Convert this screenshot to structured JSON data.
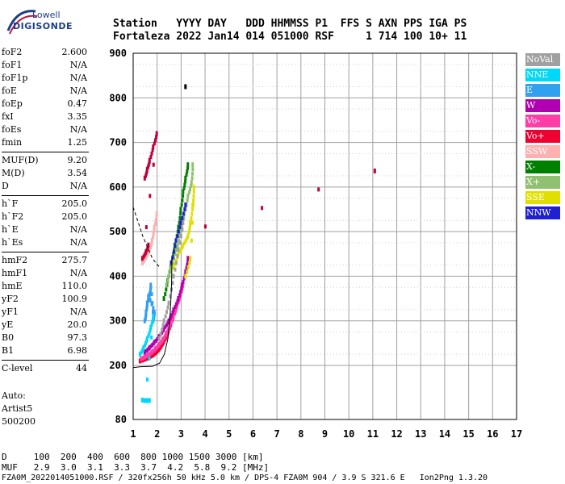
{
  "header": {
    "line1": "Station   YYYY DAY   DDD HHMMSS P1  FFS S AXN PPS IGA PS",
    "line2": "Fortaleza 2022 Jan14 014 051000 RSF     1 714 100 10+ 11"
  },
  "logo": {
    "line1": "Lowell",
    "line2": "DIGISONDE"
  },
  "params": [
    {
      "k": "foF2",
      "v": "2.600"
    },
    {
      "k": "foF1",
      "v": "N/A"
    },
    {
      "k": "foF1p",
      "v": "N/A"
    },
    {
      "k": "foE",
      "v": "N/A"
    },
    {
      "k": "foEp",
      "v": "0.47"
    },
    {
      "k": "fxI",
      "v": "3.35"
    },
    {
      "k": "foEs",
      "v": "N/A"
    },
    {
      "k": "fmin",
      "v": "1.25"
    },
    {
      "k": "MUF(D)",
      "v": "9.20"
    },
    {
      "k": "M(D)",
      "v": "3.54"
    },
    {
      "k": "D",
      "v": "N/A"
    },
    {
      "k": "h`F",
      "v": "205.0"
    },
    {
      "k": "h`F2",
      "v": "205.0"
    },
    {
      "k": "h`E",
      "v": "N/A"
    },
    {
      "k": "h`Es",
      "v": "N/A"
    },
    {
      "k": "hmF2",
      "v": "275.7"
    },
    {
      "k": "hmF1",
      "v": "N/A"
    },
    {
      "k": "hmE",
      "v": "110.0"
    },
    {
      "k": "yF2",
      "v": "100.9"
    },
    {
      "k": "yF1",
      "v": "N/A"
    },
    {
      "k": "yE",
      "v": "20.0"
    },
    {
      "k": "B0",
      "v": "97.3"
    },
    {
      "k": "B1",
      "v": "6.98"
    },
    {
      "k": "C-level",
      "v": "44"
    }
  ],
  "auto": {
    "l1": "Auto:",
    "l2": "Artist5",
    "l3": "500200"
  },
  "legend": [
    {
      "label": "NoVal",
      "bg": "#a0a0a0",
      "fg": "#ffffff"
    },
    {
      "label": "NNE",
      "bg": "#00d8f8",
      "fg": "#ffffff"
    },
    {
      "label": "E",
      "bg": "#30a0f0",
      "fg": "#ffffff"
    },
    {
      "label": "W",
      "bg": "#b000b0",
      "fg": "#ffffff"
    },
    {
      "label": "Vo-",
      "bg": "#ff3ca8",
      "fg": "#ffffff"
    },
    {
      "label": "Vo+",
      "bg": "#f00030",
      "fg": "#ffffff"
    },
    {
      "label": "SSW",
      "bg": "#ffb0b0",
      "fg": "#ffffff"
    },
    {
      "label": "X-",
      "bg": "#008000",
      "fg": "#ffffff"
    },
    {
      "label": "X+",
      "bg": "#90c070",
      "fg": "#ffffff"
    },
    {
      "label": "SSE",
      "bg": "#e0e000",
      "fg": "#ffffff"
    },
    {
      "label": "NNW",
      "bg": "#2020d0",
      "fg": "#ffffff"
    }
  ],
  "footer": {
    "row1": "D     100  200  400  600  800 1000 1500 3000 [km]",
    "row2": "MUF   2.9  3.0  3.1  3.3  3.7  4.2  5.8  9.2 [MHz]",
    "row3": "FZA0M_2022014051000.RSF / 320fx256h 50 kHz 5.0 km / DPS-4 FZA0M 904 / 3.9 S 321.6 E   Ion2Png 1.3.20"
  },
  "chart_data": {
    "type": "scatter",
    "xlim": [
      1,
      17
    ],
    "ylim": [
      80,
      900
    ],
    "x_ticks": [
      1,
      2,
      3,
      4,
      5,
      6,
      7,
      8,
      9,
      10,
      11,
      12,
      13,
      14,
      15,
      16,
      17
    ],
    "y_ticks": [
      80,
      200,
      300,
      400,
      500,
      600,
      700,
      800,
      900
    ],
    "grid": true,
    "profile_curve": [
      [
        1.0,
        195
      ],
      [
        1.3,
        197
      ],
      [
        1.8,
        198
      ],
      [
        2.1,
        205
      ],
      [
        2.3,
        225
      ],
      [
        2.45,
        260
      ],
      [
        2.55,
        320
      ],
      [
        2.6,
        380
      ],
      [
        2.62,
        440
      ]
    ],
    "profile_dash": [
      [
        1.0,
        555
      ],
      [
        1.4,
        490
      ],
      [
        1.8,
        440
      ],
      [
        2.1,
        420
      ]
    ],
    "traces": [
      {
        "color": "#f00030",
        "points": [
          [
            1.3,
            210
          ],
          [
            1.4,
            212
          ],
          [
            1.5,
            214
          ],
          [
            1.6,
            216
          ],
          [
            1.7,
            219
          ],
          [
            1.8,
            222
          ],
          [
            1.9,
            226
          ],
          [
            2.0,
            231
          ],
          [
            2.1,
            237
          ],
          [
            2.2,
            245
          ],
          [
            2.3,
            255
          ],
          [
            2.4,
            266
          ],
          [
            2.5,
            280
          ],
          [
            2.6,
            296
          ],
          [
            2.7,
            312
          ],
          [
            2.8,
            330
          ],
          [
            2.9,
            350
          ]
        ]
      },
      {
        "color": "#ff3ca8",
        "points": [
          [
            1.35,
            215
          ],
          [
            1.5,
            219
          ],
          [
            1.65,
            224
          ],
          [
            1.8,
            230
          ],
          [
            1.95,
            238
          ],
          [
            2.1,
            247
          ],
          [
            2.25,
            258
          ],
          [
            2.4,
            272
          ],
          [
            2.55,
            290
          ],
          [
            2.7,
            310
          ],
          [
            2.85,
            335
          ],
          [
            3.0,
            360
          ],
          [
            3.1,
            385
          ]
        ]
      },
      {
        "color": "#b000b0",
        "points": [
          [
            1.5,
            230
          ],
          [
            1.7,
            240
          ],
          [
            1.9,
            252
          ],
          [
            2.1,
            265
          ],
          [
            2.3,
            282
          ],
          [
            2.5,
            300
          ],
          [
            2.7,
            325
          ],
          [
            2.9,
            350
          ],
          [
            3.05,
            380
          ],
          [
            3.2,
            410
          ],
          [
            3.3,
            440
          ]
        ]
      },
      {
        "color": "#30a0f0",
        "points": [
          [
            1.5,
            300
          ],
          [
            1.55,
            320
          ],
          [
            1.6,
            340
          ],
          [
            1.7,
            360
          ],
          [
            1.75,
            380
          ],
          [
            1.85,
            300
          ],
          [
            1.9,
            320
          ],
          [
            1.65,
            355
          ]
        ]
      },
      {
        "color": "#00d8f8",
        "points": [
          [
            1.3,
            225
          ],
          [
            1.45,
            240
          ],
          [
            1.6,
            260
          ],
          [
            1.75,
            285
          ],
          [
            1.85,
            310
          ],
          [
            1.5,
            122
          ],
          [
            1.6,
            122
          ],
          [
            1.7,
            122
          ],
          [
            1.4,
            123
          ]
        ]
      },
      {
        "color": "#008000",
        "points": [
          [
            2.3,
            350
          ],
          [
            2.45,
            390
          ],
          [
            2.6,
            430
          ],
          [
            2.75,
            470
          ],
          [
            2.9,
            510
          ],
          [
            3.0,
            550
          ],
          [
            3.1,
            590
          ],
          [
            3.2,
            620
          ],
          [
            3.3,
            650
          ]
        ]
      },
      {
        "color": "#90c070",
        "points": [
          [
            2.4,
            380
          ],
          [
            2.6,
            420
          ],
          [
            2.8,
            460
          ],
          [
            3.0,
            500
          ],
          [
            3.15,
            540
          ],
          [
            3.3,
            580
          ],
          [
            3.45,
            610
          ],
          [
            3.5,
            650
          ]
        ]
      },
      {
        "color": "#e0e000",
        "points": [
          [
            2.7,
            420
          ],
          [
            2.9,
            450
          ],
          [
            3.1,
            470
          ],
          [
            3.3,
            490
          ],
          [
            3.4,
            520
          ],
          [
            3.5,
            560
          ],
          [
            3.55,
            600
          ],
          [
            3.4,
            440
          ],
          [
            3.2,
            400
          ]
        ]
      },
      {
        "color": "#ffb0b0",
        "points": [
          [
            1.4,
            430
          ],
          [
            1.5,
            440
          ],
          [
            1.6,
            450
          ],
          [
            1.7,
            460
          ],
          [
            1.8,
            480
          ],
          [
            1.9,
            510
          ],
          [
            2.0,
            540
          ]
        ]
      },
      {
        "color": "#a0a0a0",
        "points": [
          [
            2.1,
            260
          ],
          [
            2.3,
            300
          ],
          [
            2.5,
            340
          ],
          [
            2.7,
            400
          ],
          [
            2.9,
            460
          ],
          [
            3.1,
            520
          ]
        ]
      },
      {
        "color": "#2020d0",
        "points": [
          [
            2.6,
            430
          ],
          [
            2.8,
            480
          ],
          [
            3.0,
            520
          ],
          [
            3.2,
            560
          ]
        ]
      },
      {
        "color": "#c0003a",
        "points": [
          [
            1.5,
            620
          ],
          [
            1.6,
            640
          ],
          [
            1.7,
            660
          ],
          [
            1.85,
            690
          ],
          [
            2.0,
            720
          ],
          [
            1.4,
            440
          ],
          [
            1.55,
            455
          ],
          [
            1.65,
            470
          ],
          [
            11.1,
            636
          ]
        ]
      },
      {
        "color": "#000000",
        "points": [
          [
            3.2,
            825
          ]
        ]
      }
    ]
  }
}
